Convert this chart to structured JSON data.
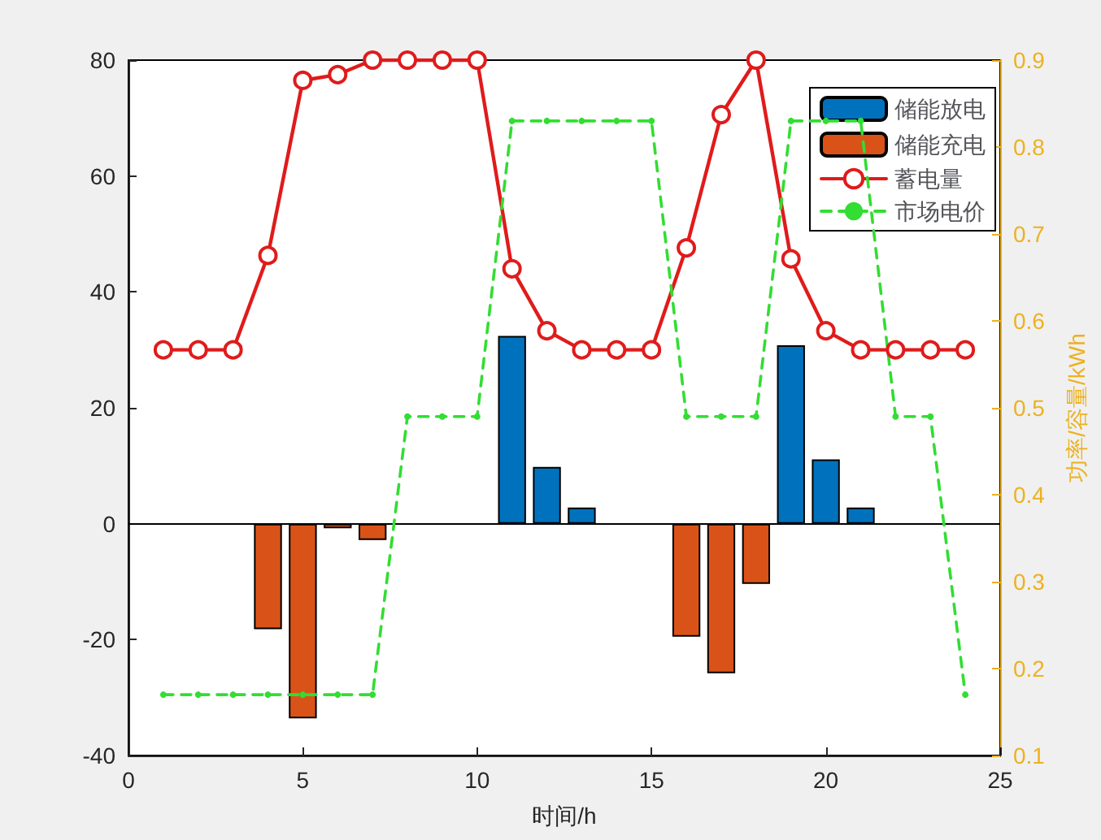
{
  "chart_data": {
    "type": "bar",
    "xlabel": "时间/h",
    "y2label": "功率/容量/kWh",
    "x": [
      1,
      2,
      3,
      4,
      5,
      6,
      7,
      8,
      9,
      10,
      11,
      12,
      13,
      14,
      15,
      16,
      17,
      18,
      19,
      20,
      21,
      22,
      23,
      24
    ],
    "series": [
      {
        "name": "储能放电",
        "color": "#0072bd",
        "values": [
          null,
          null,
          null,
          null,
          null,
          null,
          null,
          null,
          null,
          null,
          32.4,
          9.8,
          2.8,
          null,
          null,
          null,
          null,
          null,
          30.8,
          11.1,
          2.8,
          null,
          null,
          null
        ]
      },
      {
        "name": "储能充电",
        "color": "#d95319",
        "values": [
          null,
          null,
          null,
          -18.2,
          -33.6,
          -0.8,
          -2.8,
          null,
          null,
          null,
          null,
          null,
          null,
          null,
          null,
          -19.5,
          -25.8,
          -10.4,
          null,
          null,
          null,
          null,
          null,
          null
        ]
      },
      {
        "name": "蓄电量",
        "type": "line",
        "color": "#e01b1b",
        "marker": "circle",
        "line_style": "solid",
        "values": [
          30,
          30,
          30,
          46.3,
          76.5,
          77.5,
          80,
          80,
          80,
          80,
          44,
          33.3,
          30,
          30,
          30,
          47.6,
          70.6,
          80,
          45.7,
          33.3,
          30,
          30,
          30,
          30
        ]
      },
      {
        "name": "市场电价",
        "type": "line",
        "color": "#33dd33",
        "marker": "circle",
        "line_style": "dashed",
        "axis": "y2",
        "values": [
          0.17,
          0.17,
          0.17,
          0.17,
          0.17,
          0.17,
          0.17,
          0.49,
          0.49,
          0.49,
          0.83,
          0.83,
          0.83,
          0.83,
          0.83,
          0.49,
          0.49,
          0.49,
          0.83,
          0.83,
          0.83,
          0.49,
          0.49,
          0.17
        ]
      }
    ],
    "stacked": true,
    "xlim": [
      0,
      25
    ],
    "xticks": [
      0,
      5,
      10,
      15,
      20,
      25
    ],
    "ylim": [
      -40,
      80
    ],
    "yticks": [
      -40,
      -20,
      0,
      20,
      40,
      60,
      80
    ],
    "y2lim": [
      0.1,
      0.9
    ],
    "y2ticks": [
      0.1,
      0.2,
      0.3,
      0.4,
      0.5,
      0.6,
      0.7,
      0.8,
      0.9
    ],
    "ref_lines": [
      {
        "axis": "y",
        "value": 0,
        "color": "#000000"
      }
    ],
    "grid": false,
    "legend": "top right"
  }
}
